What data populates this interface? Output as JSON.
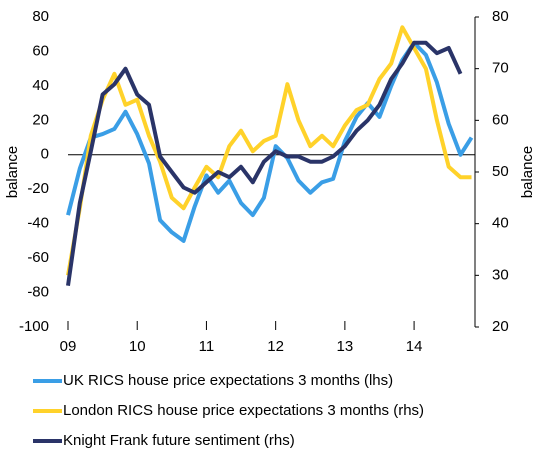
{
  "chart_data": {
    "type": "line",
    "x": [
      9,
      9.17,
      9.33,
      9.5,
      9.67,
      9.83,
      10,
      10.17,
      10.33,
      10.5,
      10.67,
      10.83,
      11,
      11.17,
      11.33,
      11.5,
      11.67,
      11.83,
      12,
      12.17,
      12.33,
      12.5,
      12.67,
      12.83,
      13,
      13.17,
      13.33,
      13.5,
      13.67,
      13.83,
      14,
      14.17,
      14.33,
      14.5,
      14.67,
      14.83
    ],
    "xlim": [
      9,
      14.88
    ],
    "xticks": [
      {
        "value": 9,
        "label": "09"
      },
      10,
      11,
      12,
      13,
      14
    ],
    "ylim": [
      -100,
      80
    ],
    "yticks": [
      -100,
      -80,
      -60,
      -40,
      -20,
      0,
      20,
      40,
      60,
      80
    ],
    "y2lim": [
      20,
      80
    ],
    "y2ticks": [
      20,
      30,
      40,
      50,
      60,
      70,
      80
    ],
    "ylabel": "balance",
    "y2label": "balance",
    "series": [
      {
        "name": "UK RICS house price expectations 3 months (lhs)",
        "color": "#3a9ee6",
        "values": [
          -35,
          -8,
          10,
          12,
          15,
          25,
          12,
          -5,
          -38,
          -45,
          -50,
          -30,
          -12,
          -22,
          -15,
          -28,
          -35,
          -25,
          5,
          -2,
          -15,
          -22,
          -16,
          -14,
          8,
          22,
          30,
          22,
          40,
          55,
          65,
          58,
          42,
          18,
          0,
          10
        ]
      },
      {
        "name": "London RICS house price expectations 3 months (rhs)",
        "color": "#ffd22a",
        "axis": "y2",
        "values": [
          30,
          43,
          57,
          64,
          69,
          63,
          64,
          57,
          52,
          45,
          43,
          47,
          51,
          49,
          55,
          58,
          54,
          56,
          57,
          67,
          60,
          55,
          57,
          55,
          59,
          62,
          63,
          68,
          71,
          78,
          74,
          70,
          60,
          51,
          49,
          49
        ]
      },
      {
        "name": "Knight Frank future sentiment (rhs)",
        "color": "#2a3468",
        "axis": "y2",
        "values": [
          28,
          44,
          54,
          65,
          67,
          70,
          65,
          63,
          53,
          50,
          47,
          46,
          48,
          50,
          49,
          51,
          48,
          52,
          54,
          53,
          53,
          52,
          52,
          53,
          55,
          58,
          60,
          63,
          68,
          71,
          75,
          75,
          73,
          74,
          69,
          null
        ]
      }
    ]
  }
}
